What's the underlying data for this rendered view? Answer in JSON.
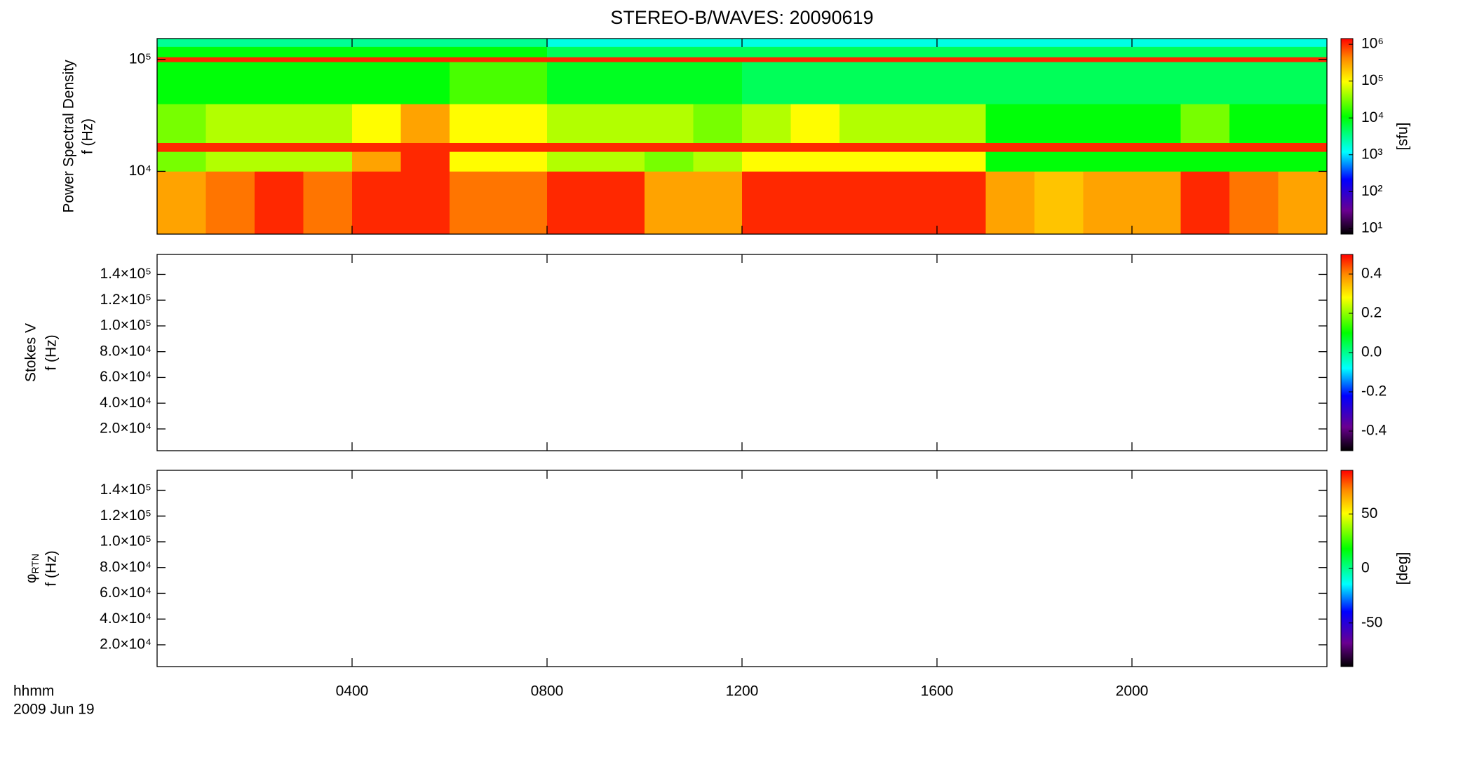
{
  "chart_data": [
    {
      "type": "spectrogram",
      "title": "STEREO-B/WAVES: 20090619",
      "ylabel": [
        "Power Spectral Density",
        "f (Hz)"
      ],
      "ylog": true,
      "ylim": [
        2750,
        153500
      ],
      "yticks": [
        {
          "value": 10000,
          "label": "10⁴"
        },
        {
          "value": 100000,
          "label": "10⁵"
        }
      ],
      "xlim": [
        0,
        24
      ],
      "x_edges": [
        0,
        1,
        2,
        3,
        4,
        5,
        6,
        7,
        8,
        9,
        10,
        11,
        12,
        13,
        14,
        15,
        16,
        17,
        18,
        19,
        20,
        21,
        22,
        23,
        24
      ],
      "freq_edges": [
        2750,
        10000,
        15000,
        18000,
        40000,
        95000,
        105000,
        130000,
        153500
      ],
      "values": [
        [
          300000,
          500000,
          1000000,
          500000,
          1000000,
          1000000,
          500000,
          500000,
          1000000,
          1000000,
          300000,
          300000,
          1000000,
          1000000,
          1000000,
          1000000,
          1000000,
          300000,
          200000,
          300000,
          300000,
          1000000,
          500000,
          300000
        ],
        [
          30000,
          50000,
          50000,
          50000,
          300000,
          1000000,
          100000,
          100000,
          50000,
          50000,
          30000,
          50000,
          100000,
          100000,
          100000,
          100000,
          100000,
          10000,
          10000,
          10000,
          10000,
          10000,
          10000,
          10000
        ],
        [
          1000000,
          1000000,
          1000000,
          1000000,
          1000000,
          1000000,
          1000000,
          1000000,
          1000000,
          1000000,
          1000000,
          1000000,
          1000000,
          1000000,
          1000000,
          1000000,
          1000000,
          1000000,
          1000000,
          1000000,
          1000000,
          1000000,
          1000000,
          1000000
        ],
        [
          30000,
          50000,
          50000,
          50000,
          100000,
          300000,
          100000,
          100000,
          50000,
          50000,
          50000,
          30000,
          50000,
          100000,
          50000,
          50000,
          50000,
          10000,
          10000,
          10000,
          10000,
          30000,
          10000,
          10000
        ],
        [
          10000,
          10000,
          10000,
          10000,
          10000,
          10000,
          20000,
          20000,
          8000,
          8000,
          8000,
          8000,
          5000,
          5000,
          5000,
          5000,
          5000,
          5000,
          5000,
          5000,
          5000,
          5000,
          5000,
          5000
        ],
        [
          1000000,
          1000000,
          1000000,
          1000000,
          1000000,
          1000000,
          1000000,
          1000000,
          1000000,
          1000000,
          1000000,
          1000000,
          1000000,
          1000000,
          1000000,
          1000000,
          1000000,
          1000000,
          1000000,
          1000000,
          1000000,
          1000000,
          1000000,
          1000000
        ],
        [
          10000,
          10000,
          10000,
          10000,
          10000,
          10000,
          10000,
          10000,
          5000,
          5000,
          5000,
          5000,
          5000,
          5000,
          5000,
          5000,
          5000,
          5000,
          5000,
          5000,
          5000,
          5000,
          5000,
          5000
        ],
        [
          3000,
          3000,
          3000,
          3000,
          3000,
          3000,
          3000,
          3000,
          1500,
          1500,
          1500,
          1500,
          1500,
          1500,
          1500,
          1500,
          1500,
          1500,
          1500,
          1500,
          1500,
          1500,
          1500,
          1500
        ]
      ],
      "colorbar": {
        "log": true,
        "lim": [
          7,
          1430000
        ],
        "label": "[sfu]",
        "ticks": [
          {
            "value": 10,
            "label": "10¹"
          },
          {
            "value": 100,
            "label": "10²"
          },
          {
            "value": 1000,
            "label": "10³"
          },
          {
            "value": 10000,
            "label": "10⁴"
          },
          {
            "value": 100000,
            "label": "10⁵"
          },
          {
            "value": 1000000,
            "label": "10⁶"
          }
        ]
      }
    },
    {
      "type": "spectrogram",
      "ylabel": [
        "Stokes V",
        "f (Hz)"
      ],
      "ylog": false,
      "ylim": [
        3100,
        155500
      ],
      "yticks": [
        {
          "value": 20000,
          "label": "2.0×10⁴"
        },
        {
          "value": 40000,
          "label": "4.0×10⁴"
        },
        {
          "value": 60000,
          "label": "6.0×10⁴"
        },
        {
          "value": 80000,
          "label": "8.0×10⁴"
        },
        {
          "value": 100000,
          "label": "1.0×10⁵"
        },
        {
          "value": 120000,
          "label": "1.2×10⁵"
        },
        {
          "value": 140000,
          "label": "1.4×10⁵"
        }
      ],
      "xlim": [
        0,
        24
      ],
      "colorbar": {
        "log": false,
        "lim": [
          -0.5,
          0.5
        ],
        "ticks": [
          -0.4,
          -0.2,
          {
            "value": 0,
            "label": "0.0"
          },
          0.2,
          0.4
        ]
      }
    },
    {
      "type": "spectrogram",
      "ylabel": [
        "φ",
        "f (Hz)"
      ],
      "ylabel_subscript": "RTN",
      "ylog": false,
      "ylim": [
        3100,
        155500
      ],
      "yticks": [
        {
          "value": 20000,
          "label": "2.0×10⁴"
        },
        {
          "value": 40000,
          "label": "4.0×10⁴"
        },
        {
          "value": 60000,
          "label": "6.0×10⁴"
        },
        {
          "value": 80000,
          "label": "8.0×10⁴"
        },
        {
          "value": 100000,
          "label": "1.0×10⁵"
        },
        {
          "value": 120000,
          "label": "1.2×10⁵"
        },
        {
          "value": 140000,
          "label": "1.4×10⁵"
        }
      ],
      "xlim": [
        0,
        24
      ],
      "xticks": [
        {
          "value": 4,
          "label": "0400"
        },
        {
          "value": 8,
          "label": "0800"
        },
        {
          "value": 12,
          "label": "1200"
        },
        {
          "value": 16,
          "label": "1600"
        },
        {
          "value": 20,
          "label": "2000"
        }
      ],
      "xlabel": "hhmm",
      "date": "2009 Jun 19",
      "colorbar": {
        "log": false,
        "lim": [
          -90,
          90
        ],
        "label": "[deg]",
        "ticks": [
          -50,
          0,
          50
        ]
      }
    }
  ]
}
